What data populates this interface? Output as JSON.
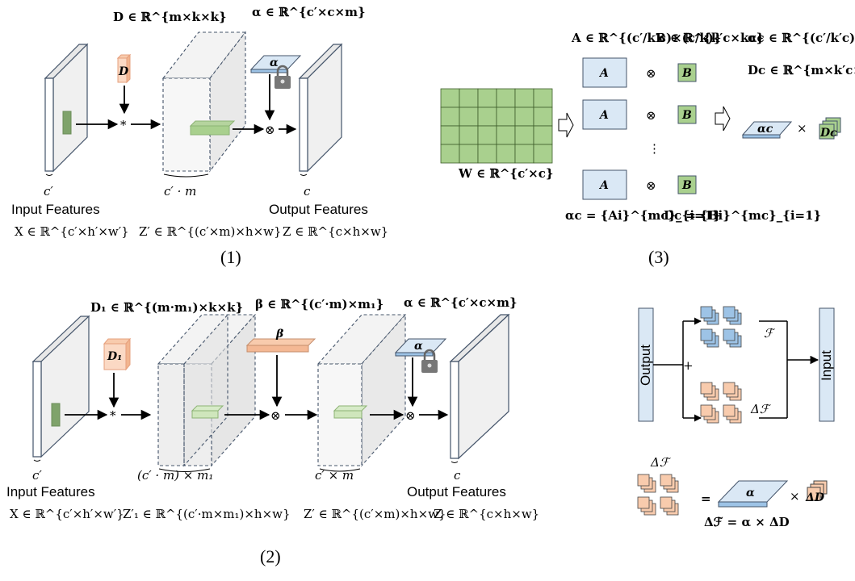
{
  "panel1": {
    "caption": "(1)",
    "D_formula": "D ∈ ℝ^{m×k×k}",
    "alpha_formula": "α ∈ ℝ^{c′×c×m}",
    "D_label": "D",
    "alpha_label": "α",
    "star": "*",
    "otimes": "⊗",
    "in_dim": "c′",
    "mid_dim": "c′ · m",
    "out_dim": "c",
    "input_title": "Input Features",
    "input_formula": "X ∈ ℝ^{c′×h′×w′}",
    "mid_formula": "Z′ ∈ ℝ^{(c′×m)×h×w}",
    "output_title": "Output Features",
    "output_formula": "Z ∈ ℝ^{c×h×w}"
  },
  "panel2": {
    "caption": "(2)",
    "D1_formula": "D₁ ∈ ℝ^{(m·m₁)×k×k}",
    "beta_formula": "β ∈ ℝ^{(c′·m)×m₁}",
    "alpha_formula": "α ∈ ℝ^{c′×c×m}",
    "D1_label": "D₁",
    "beta_label": "β",
    "alpha_label": "α",
    "star": "*",
    "otimes": "⊗",
    "in_dim": "c′",
    "mid1_dim": "(c′ · m) × m₁",
    "mid2_dim": "c′ × m",
    "out_dim": "c",
    "input_title": "Input Features",
    "input_formula": "X ∈ ℝ^{c′×h′×w′}",
    "mid1_formula": "Z′₁ ∈ ℝ^{(c′·m×m₁)×h×w}",
    "mid2_formula": "Z′ ∈ ℝ^{(c′×m)×h×w}",
    "output_title": "Output Features",
    "output_formula": "Z ∈ ℝ^{c×h×w}"
  },
  "panel3": {
    "caption": "(3)",
    "A_formula": "A ∈ ℝ^{(c′/k′c)×(c/k)}",
    "B_formula": "B ∈ ℝ^{k′c×kc}",
    "alpha_c_formula": "αc ∈ ℝ^{(c′/k′c)×(c/k)×mc}",
    "D_c_formula": "Dc ∈ ℝ^{m×k′c×kc}",
    "W_formula": "W ∈ ℝ^{c′×c}",
    "A_label": "A",
    "B_label": "B",
    "otimes": "⊗",
    "vdots": "⋮",
    "alpha_c_label": "αc",
    "D_c_label": "Dc",
    "times": "×",
    "alpha_c_set": "αc = {Ai}^{mc}_{i=1}",
    "D_c_set": "Dc = {Bi}^{mc}_{i=1}",
    "grid_rows": 4,
    "grid_cols": 6
  },
  "panel4": {
    "output_label": "Output",
    "input_label": "Input",
    "F_label": "ℱ",
    "dF_label": "Δℱ",
    "plus": "+",
    "dF_title": "Δℱ",
    "equals": "=",
    "alpha_label": "α",
    "times": "×",
    "dD_label": "ΔD",
    "dF_formula": "Δℱ = α × ΔD"
  },
  "colors": {
    "green": "#a9d08e",
    "green_dark": "#7fa36b",
    "blue": "#dae8f5",
    "blue_dark": "#9dc3e6",
    "salmon": "#f8cbad",
    "plate": "#f2f2f2",
    "plate_edge": "#44546a"
  }
}
